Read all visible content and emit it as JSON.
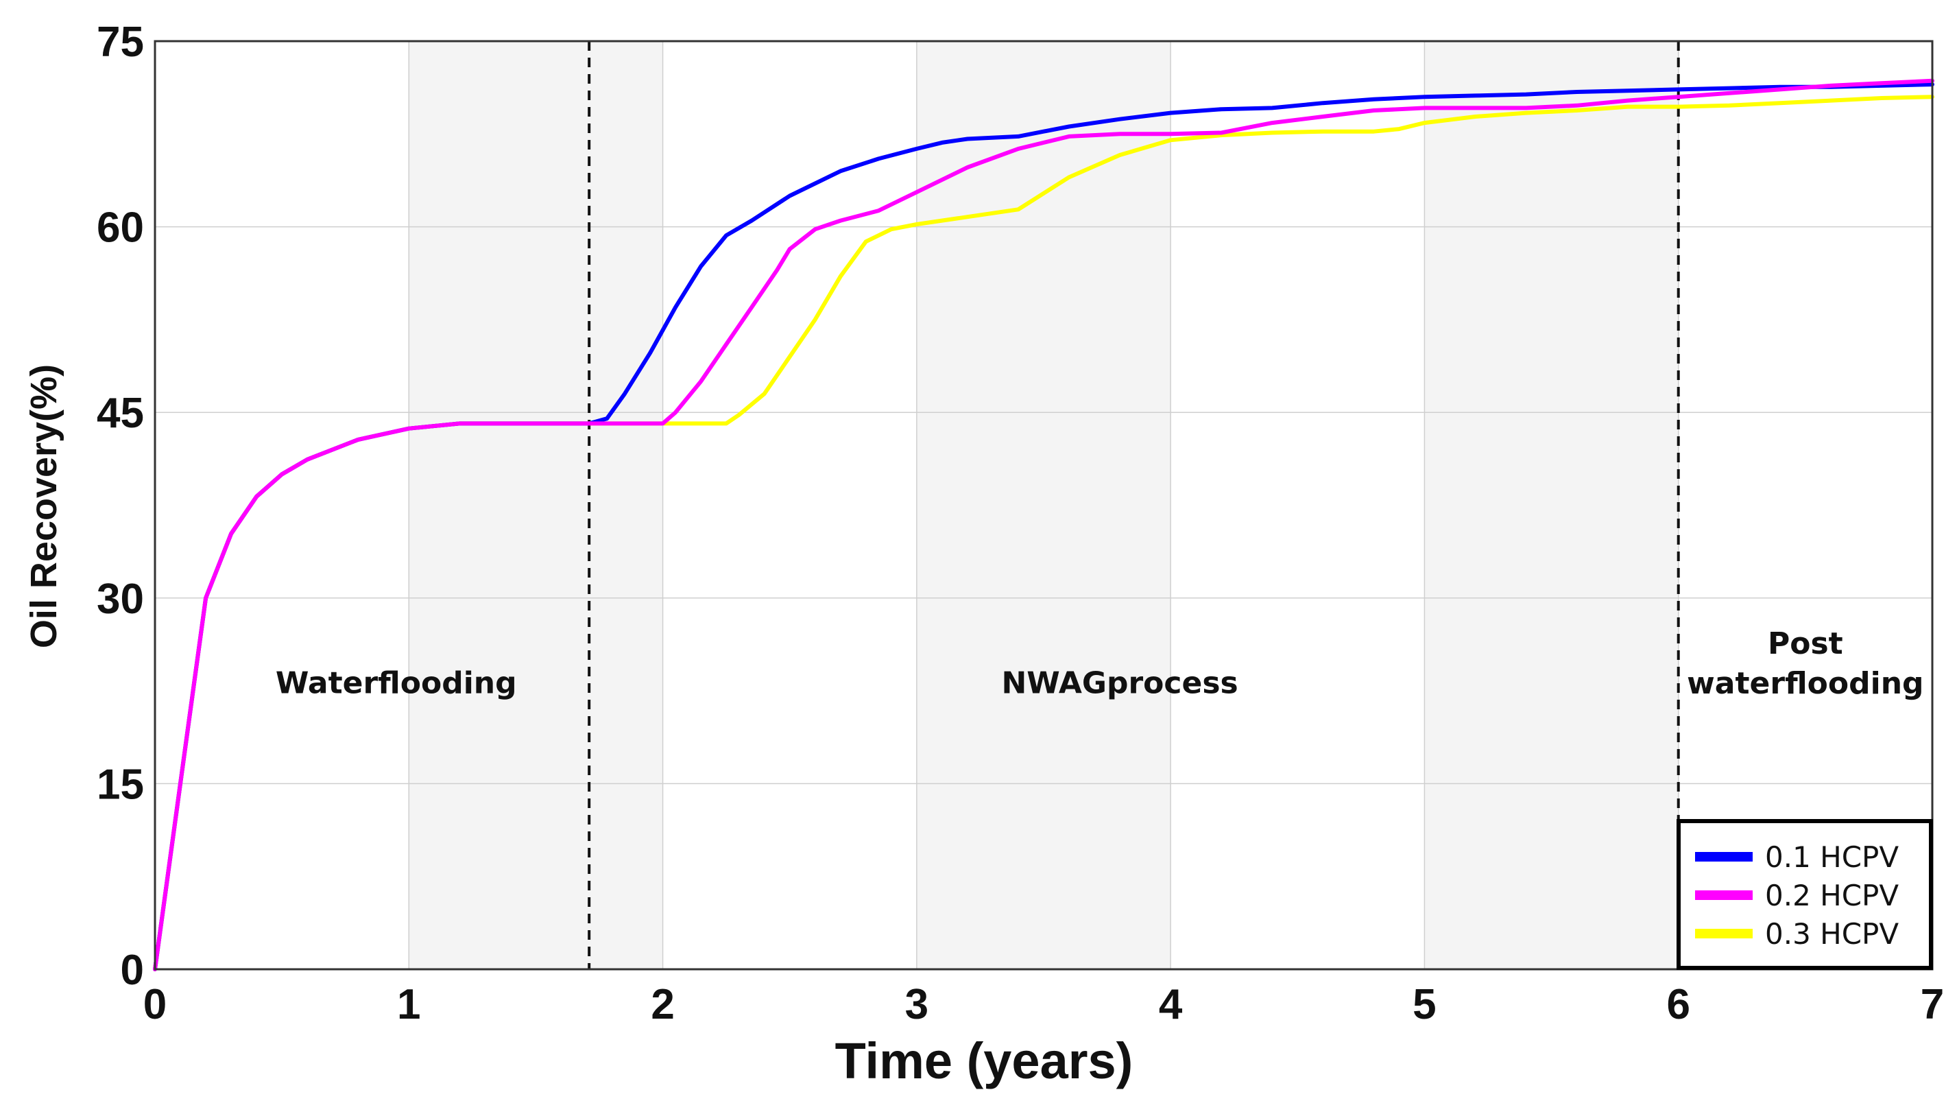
{
  "chart_data": {
    "type": "line",
    "title": "",
    "xlabel": "Time (years)",
    "ylabel": "Oil Recovery(%)",
    "xlim": [
      0,
      7
    ],
    "ylim": [
      0,
      75
    ],
    "x_ticks": [
      "0",
      "1",
      "2",
      "3",
      "4",
      "5",
      "6",
      "7"
    ],
    "y_ticks": [
      "0",
      "15",
      "30",
      "45",
      "60",
      "75"
    ],
    "grid": true,
    "legend_position": "bottom-right",
    "phase_boundaries": [
      1.71,
      6.0
    ],
    "phase_labels": [
      {
        "lines": [
          "Waterflooding"
        ],
        "x": 0.95,
        "y": 22.3
      },
      {
        "lines": [
          "NWAGprocess"
        ],
        "x": 3.8,
        "y": 22.3
      },
      {
        "lines": [
          "Post",
          "waterflooding"
        ],
        "x": 6.5,
        "y": 25.5
      }
    ],
    "series": [
      {
        "name": "0.1 HCPV",
        "color": "#0000ff",
        "x": [
          0,
          0.1,
          0.2,
          0.3,
          0.4,
          0.5,
          0.6,
          0.8,
          1.0,
          1.2,
          1.4,
          1.6,
          1.71,
          1.78,
          1.85,
          1.95,
          2.05,
          2.15,
          2.25,
          2.35,
          2.5,
          2.7,
          2.85,
          3.0,
          3.1,
          3.2,
          3.4,
          3.6,
          3.8,
          4.0,
          4.2,
          4.4,
          4.6,
          4.8,
          5.0,
          5.2,
          5.4,
          5.6,
          5.8,
          6.0,
          6.2,
          6.4,
          6.6,
          6.8,
          7.0
        ],
        "values": [
          0,
          15.0,
          30.0,
          35.2,
          38.2,
          40.0,
          41.2,
          42.8,
          43.7,
          44.1,
          44.1,
          44.1,
          44.1,
          44.5,
          46.5,
          49.8,
          53.5,
          56.8,
          59.3,
          60.5,
          62.5,
          64.5,
          65.5,
          66.3,
          66.8,
          67.1,
          67.3,
          68.1,
          68.7,
          69.2,
          69.5,
          69.6,
          70.0,
          70.3,
          70.5,
          70.6,
          70.7,
          70.9,
          71.0,
          71.1,
          71.2,
          71.3,
          71.3,
          71.4,
          71.5
        ]
      },
      {
        "name": "0.2 HCPV",
        "color": "#ff00ff",
        "x": [
          0,
          0.1,
          0.2,
          0.3,
          0.4,
          0.5,
          0.6,
          0.8,
          1.0,
          1.2,
          1.4,
          1.6,
          1.8,
          2.0,
          2.05,
          2.15,
          2.25,
          2.35,
          2.45,
          2.5,
          2.6,
          2.7,
          2.85,
          3.0,
          3.2,
          3.4,
          3.6,
          3.8,
          4.0,
          4.2,
          4.4,
          4.6,
          4.8,
          5.0,
          5.2,
          5.4,
          5.6,
          5.8,
          6.0,
          6.2,
          6.4,
          6.6,
          6.8,
          7.0
        ],
        "values": [
          0,
          15.0,
          30.0,
          35.2,
          38.2,
          40.0,
          41.2,
          42.8,
          43.7,
          44.1,
          44.1,
          44.1,
          44.1,
          44.1,
          45.0,
          47.5,
          50.5,
          53.5,
          56.5,
          58.2,
          59.8,
          60.5,
          61.3,
          62.8,
          64.8,
          66.3,
          67.3,
          67.5,
          67.5,
          67.6,
          68.4,
          68.9,
          69.4,
          69.6,
          69.6,
          69.6,
          69.8,
          70.2,
          70.5,
          70.8,
          71.1,
          71.4,
          71.6,
          71.8
        ]
      },
      {
        "name": "0.3 HCPV",
        "color": "#ffff00",
        "x": [
          0,
          0.1,
          0.2,
          0.3,
          0.4,
          0.5,
          0.6,
          0.8,
          1.0,
          1.2,
          1.4,
          1.6,
          1.8,
          2.0,
          2.25,
          2.3,
          2.4,
          2.5,
          2.6,
          2.7,
          2.8,
          2.9,
          3.0,
          3.2,
          3.4,
          3.6,
          3.8,
          4.0,
          4.2,
          4.4,
          4.6,
          4.8,
          4.9,
          5.0,
          5.2,
          5.4,
          5.6,
          5.8,
          6.0,
          6.2,
          6.4,
          6.6,
          6.8,
          7.0
        ],
        "values": [
          0,
          15.0,
          30.0,
          35.2,
          38.2,
          40.0,
          41.2,
          42.8,
          43.7,
          44.1,
          44.1,
          44.1,
          44.1,
          44.1,
          44.1,
          44.8,
          46.5,
          49.5,
          52.5,
          56.0,
          58.8,
          59.8,
          60.2,
          60.8,
          61.4,
          64.0,
          65.8,
          67.0,
          67.4,
          67.6,
          67.7,
          67.7,
          67.9,
          68.4,
          68.9,
          69.2,
          69.4,
          69.7,
          69.7,
          69.8,
          70.0,
          70.2,
          70.4,
          70.5
        ]
      }
    ]
  }
}
